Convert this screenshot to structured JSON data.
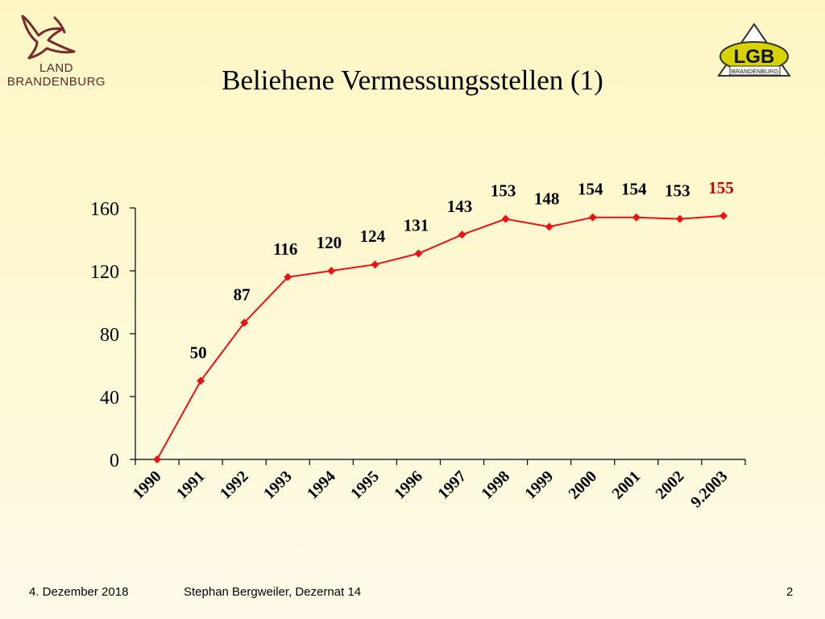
{
  "header": {
    "title": "Beliehene Vermessungsstellen (1)",
    "logo_left_line1": "LAND",
    "logo_left_line2": "BRANDENBURG",
    "logo_right_main": "LGB",
    "logo_right_sub": "BRANDENBURG"
  },
  "footer": {
    "date": "4. Dezember 2018",
    "author": "Stephan Bergweiler, Dezernat 14",
    "page": "2"
  },
  "chart_data": {
    "type": "line",
    "categories": [
      "1990",
      "1991",
      "1992",
      "1993",
      "1994",
      "1995",
      "1996",
      "1997",
      "1998",
      "1999",
      "2000",
      "2001",
      "2002",
      "9.2003"
    ],
    "series": [
      {
        "values": [
          0,
          50,
          87,
          116,
          120,
          124,
          131,
          143,
          153,
          148,
          154,
          154,
          153,
          155
        ],
        "data_labels": [
          "",
          "50",
          "87",
          "116",
          "120",
          "124",
          "131",
          "143",
          "153",
          "148",
          "154",
          "154",
          "153",
          "155"
        ],
        "color": "#ee1111"
      }
    ],
    "highlight_label_color": "#cc0000",
    "ylim": [
      0,
      160
    ],
    "yticks": [
      0,
      40,
      80,
      120,
      160
    ],
    "grid": false,
    "legend": "none"
  }
}
